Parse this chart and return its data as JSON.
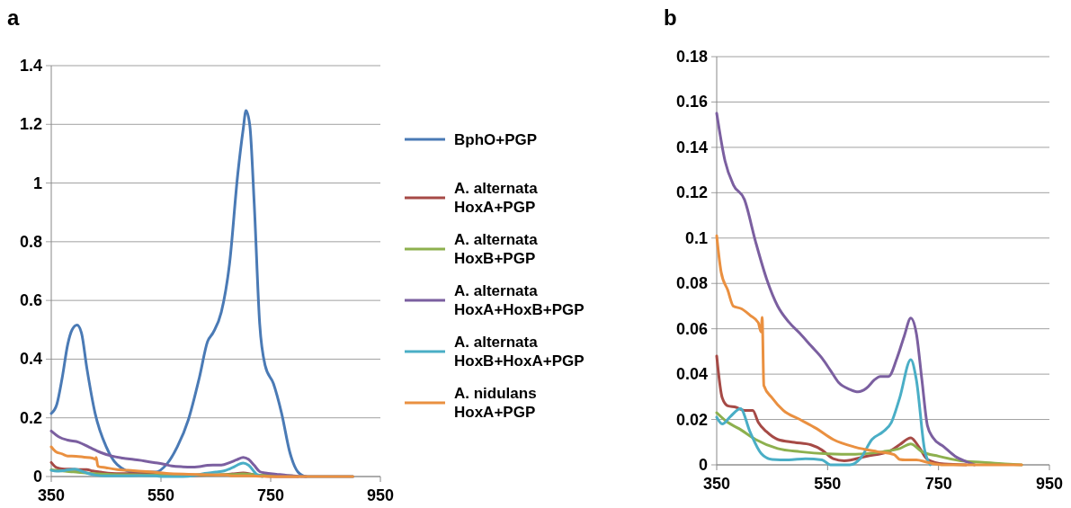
{
  "chart_data": [
    {
      "type": "line",
      "title": "a",
      "xlim": [
        350,
        950
      ],
      "xticks": [
        350,
        550,
        750,
        950
      ],
      "ylim": [
        0,
        1.4
      ],
      "yticks": [
        0,
        0.2,
        0.4,
        0.6,
        0.8,
        1,
        1.2,
        1.4
      ],
      "grid": "y",
      "legend": "right",
      "marker": "none",
      "line_style": "solid",
      "series": [
        {
          "name": "BphO+PGP",
          "color": "#4a7ab5",
          "x": [
            350,
            360,
            370,
            380,
            388,
            397,
            405,
            415,
            430,
            450,
            470,
            500,
            540,
            560,
            580,
            600,
            620,
            635,
            645,
            660,
            675,
            690,
            700,
            705,
            712,
            720,
            730,
            740,
            755,
            770,
            785,
            800,
            815,
            900
          ],
          "values": [
            0.215,
            0.245,
            0.337,
            0.45,
            0.5,
            0.516,
            0.49,
            0.368,
            0.215,
            0.102,
            0.041,
            0.015,
            0.015,
            0.041,
            0.102,
            0.194,
            0.337,
            0.46,
            0.49,
            0.56,
            0.725,
            1.03,
            1.185,
            1.247,
            1.196,
            0.93,
            0.52,
            0.378,
            0.317,
            0.215,
            0.082,
            0.015,
            0,
            0
          ]
        },
        {
          "name": "A. alternata HoxA+PGP",
          "color": "#a64a46",
          "x": [
            350,
            360,
            370,
            385,
            400,
            415,
            425,
            440,
            460,
            490,
            520,
            540,
            560,
            580,
            620,
            660,
            680,
            700,
            715,
            730,
            760,
            800
          ],
          "values": [
            0.048,
            0.03,
            0.026,
            0.025,
            0.024,
            0.024,
            0.019,
            0.015,
            0.011,
            0.01,
            0.009,
            0.007,
            0.003,
            0.002,
            0.004,
            0.006,
            0.009,
            0.012,
            0.008,
            0.002,
            0,
            0
          ]
        },
        {
          "name": "A. alternata HoxB+PGP",
          "color": "#8db04e",
          "x": [
            350,
            370,
            390,
            420,
            460,
            500,
            550,
            600,
            650,
            680,
            700,
            720,
            750,
            790
          ],
          "values": [
            0.023,
            0.019,
            0.016,
            0.011,
            0.007,
            0.006,
            0.005,
            0.005,
            0.006,
            0.007,
            0.009,
            0.006,
            0.004,
            0.002
          ]
        },
        {
          "name": "A. alternata HoxA+HoxB+PGP",
          "color": "#7b5fa0",
          "x": [
            350,
            365,
            380,
            400,
            420,
            440,
            460,
            480,
            500,
            520,
            540,
            555,
            570,
            590,
            605,
            620,
            635,
            645,
            660,
            675,
            688,
            700,
            710,
            720,
            730,
            740,
            760,
            780,
            800,
            815
          ],
          "values": [
            0.155,
            0.134,
            0.124,
            0.117,
            0.099,
            0.082,
            0.07,
            0.063,
            0.058,
            0.053,
            0.047,
            0.042,
            0.036,
            0.033,
            0.032,
            0.034,
            0.038,
            0.039,
            0.039,
            0.047,
            0.057,
            0.065,
            0.058,
            0.038,
            0.017,
            0.012,
            0.008,
            0.004,
            0.001,
            0
          ]
        },
        {
          "name": "A. alternata HoxB+HoxA+PGP",
          "color": "#4aaec6",
          "x": [
            350,
            360,
            375,
            393,
            410,
            430,
            450,
            480,
            510,
            540,
            555,
            590,
            610,
            630,
            650,
            665,
            680,
            700,
            710,
            725,
            735
          ],
          "values": [
            0.021,
            0.018,
            0.021,
            0.025,
            0.015,
            0.005,
            0.002,
            0.002,
            0.003,
            0.002,
            0,
            0,
            0.003,
            0.011,
            0.015,
            0.019,
            0.03,
            0.046,
            0.038,
            0.007,
            0
          ]
        },
        {
          "name": "A. nidulans HoxA+PGP",
          "color": "#ea9040",
          "x": [
            350,
            358,
            370,
            380,
            395,
            410,
            425,
            430,
            432,
            435,
            450,
            470,
            500,
            530,
            560,
            600,
            640,
            670,
            680,
            690,
            710,
            730,
            760,
            800,
            900
          ],
          "values": [
            0.101,
            0.085,
            0.077,
            0.07,
            0.069,
            0.066,
            0.063,
            0.059,
            0.065,
            0.035,
            0.03,
            0.024,
            0.02,
            0.016,
            0.011,
            0.008,
            0.006,
            0.005,
            0.002,
            0.002,
            0.002,
            0.001,
            0,
            0,
            0
          ]
        }
      ]
    },
    {
      "type": "line",
      "title": "b",
      "xlim": [
        350,
        950
      ],
      "xticks": [
        350,
        550,
        750,
        950
      ],
      "ylim": [
        0,
        0.18
      ],
      "yticks": [
        0,
        0.02,
        0.04,
        0.06,
        0.08,
        0.1,
        0.12,
        0.14,
        0.16,
        0.18
      ],
      "grid": "y",
      "marker": "none",
      "line_style": "solid",
      "series": [
        {
          "color": "#a64a46",
          "x": [
            350,
            360,
            370,
            385,
            400,
            415,
            425,
            440,
            460,
            490,
            520,
            540,
            560,
            580,
            620,
            660,
            680,
            700,
            715,
            730,
            760,
            800
          ],
          "values": [
            0.048,
            0.0295,
            0.026,
            0.0254,
            0.024,
            0.024,
            0.0187,
            0.0146,
            0.0112,
            0.0099,
            0.0088,
            0.0065,
            0.0027,
            0.0018,
            0.0038,
            0.0058,
            0.0089,
            0.0119,
            0.0078,
            0.0024,
            0.0004,
            0
          ]
        },
        {
          "color": "#8db04e",
          "x": [
            350,
            370,
            390,
            420,
            460,
            500,
            550,
            600,
            650,
            680,
            700,
            720,
            750,
            790,
            830,
            870,
            900
          ],
          "values": [
            0.023,
            0.0187,
            0.016,
            0.0112,
            0.0072,
            0.0058,
            0.0049,
            0.0047,
            0.0058,
            0.0072,
            0.0092,
            0.0058,
            0.0038,
            0.0018,
            0.0011,
            0.0004,
            0
          ]
        },
        {
          "color": "#7b5fa0",
          "x": [
            350,
            365,
            380,
            400,
            420,
            440,
            460,
            480,
            500,
            520,
            540,
            555,
            570,
            590,
            605,
            620,
            635,
            645,
            660,
            675,
            688,
            700,
            710,
            720,
            730,
            740,
            760,
            780,
            800,
            815
          ],
          "values": [
            0.155,
            0.134,
            0.1235,
            0.117,
            0.0985,
            0.082,
            0.07,
            0.063,
            0.058,
            0.0525,
            0.047,
            0.0417,
            0.0363,
            0.0333,
            0.0322,
            0.0338,
            0.0376,
            0.039,
            0.039,
            0.047,
            0.0566,
            0.0647,
            0.058,
            0.0376,
            0.0173,
            0.012,
            0.0079,
            0.0038,
            0.0014,
            0
          ]
        },
        {
          "color": "#4aaec6",
          "x": [
            350,
            360,
            375,
            393,
            410,
            430,
            450,
            480,
            510,
            540,
            555,
            590,
            610,
            630,
            650,
            665,
            680,
            700,
            710,
            725,
            735
          ],
          "values": [
            0.021,
            0.018,
            0.0214,
            0.0248,
            0.0146,
            0.0051,
            0.0024,
            0.0022,
            0.0027,
            0.0022,
            0,
            0,
            0.0031,
            0.0112,
            0.0146,
            0.0187,
            0.0295,
            0.0464,
            0.0376,
            0.0065,
            0
          ]
        },
        {
          "color": "#ea9040",
          "x": [
            350,
            358,
            370,
            380,
            395,
            410,
            425,
            430,
            432,
            435,
            450,
            470,
            500,
            530,
            560,
            600,
            640,
            670,
            680,
            690,
            710,
            730,
            760,
            800,
            900
          ],
          "values": [
            0.101,
            0.085,
            0.077,
            0.07,
            0.0688,
            0.066,
            0.0627,
            0.0586,
            0.065,
            0.035,
            0.0295,
            0.024,
            0.02,
            0.016,
            0.0112,
            0.0078,
            0.0058,
            0.0045,
            0.0024,
            0.0022,
            0.0022,
            0.0011,
            0,
            0,
            0
          ]
        }
      ]
    }
  ]
}
